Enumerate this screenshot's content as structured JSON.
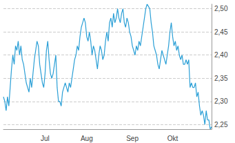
{
  "chart_data": {
    "type": "line",
    "categories": [
      null,
      null,
      null,
      null,
      null,
      null,
      null,
      null,
      null,
      null,
      null,
      null,
      null,
      null,
      null,
      null,
      null,
      null,
      null,
      null,
      null,
      null,
      null,
      null,
      null,
      null,
      null,
      null,
      null,
      null,
      null,
      "Jul",
      null,
      null,
      null,
      null,
      null,
      null,
      null,
      null,
      null,
      null,
      null,
      null,
      null,
      null,
      null,
      null,
      null,
      null,
      null,
      null,
      null,
      null,
      null,
      null,
      null,
      null,
      null,
      null,
      null,
      null,
      "Aug",
      null,
      null,
      null,
      null,
      null,
      null,
      null,
      null,
      null,
      null,
      null,
      null,
      null,
      null,
      null,
      null,
      null,
      null,
      null,
      null,
      null,
      null,
      null,
      null,
      null,
      null,
      null,
      null,
      null,
      null,
      null,
      null,
      null,
      "Sep",
      null,
      null,
      null,
      null,
      null,
      null,
      null,
      null,
      null,
      null,
      null,
      null,
      null,
      null,
      null,
      null,
      null,
      null,
      null,
      null,
      null,
      null,
      null,
      null,
      null,
      null,
      null,
      null,
      null,
      "Okt",
      null,
      null,
      null,
      null,
      null,
      null,
      null,
      null,
      null,
      null,
      null,
      null,
      null,
      null,
      null,
      null,
      null,
      null,
      null,
      null,
      null,
      null,
      null,
      null,
      null,
      null,
      null,
      null,
      null
    ],
    "values": [
      2.31,
      2.3,
      2.28,
      2.31,
      2.29,
      2.33,
      2.37,
      2.4,
      2.38,
      2.42,
      2.41,
      2.43,
      2.4,
      2.42,
      2.39,
      2.38,
      2.36,
      2.34,
      2.33,
      2.32,
      2.35,
      2.33,
      2.36,
      2.39,
      2.41,
      2.43,
      2.42,
      2.38,
      2.36,
      2.34,
      2.33,
      2.36,
      2.41,
      2.43,
      2.39,
      2.36,
      2.35,
      2.36,
      2.38,
      2.4,
      2.33,
      2.3,
      2.3,
      2.29,
      2.32,
      2.33,
      2.34,
      2.33,
      2.32,
      2.34,
      2.33,
      2.35,
      2.37,
      2.39,
      2.4,
      2.42,
      2.41,
      2.44,
      2.46,
      2.47,
      2.48,
      2.47,
      2.44,
      2.43,
      2.45,
      2.43,
      2.4,
      2.42,
      2.41,
      2.39,
      2.37,
      2.4,
      2.42,
      2.41,
      2.39,
      2.4,
      2.43,
      2.45,
      2.43,
      2.47,
      2.48,
      2.46,
      2.49,
      2.47,
      2.48,
      2.5,
      2.48,
      2.47,
      2.49,
      2.5,
      2.47,
      2.46,
      2.48,
      2.47,
      2.45,
      2.44,
      2.42,
      2.41,
      2.4,
      2.42,
      2.41,
      2.43,
      2.42,
      2.44,
      2.46,
      2.48,
      2.5,
      2.51,
      2.505,
      2.5,
      2.47,
      2.45,
      2.42,
      2.41,
      2.4,
      2.38,
      2.37,
      2.39,
      2.41,
      2.4,
      2.39,
      2.38,
      2.4,
      2.42,
      2.45,
      2.47,
      2.44,
      2.42,
      2.43,
      2.41,
      2.42,
      2.4,
      2.39,
      2.4,
      2.38,
      2.38,
      2.39,
      2.38,
      2.39,
      2.33,
      2.34,
      2.33,
      2.33,
      2.34,
      2.31,
      2.32,
      2.29,
      2.27,
      2.28,
      2.27,
      2.25,
      2.28,
      2.26,
      2.26,
      2.24,
      2.245
    ],
    "color": "#2a9fd6",
    "ylim": [
      2.24,
      2.51
    ],
    "yticks": [
      {
        "value": 2.25,
        "label": "2,25"
      },
      {
        "value": 2.3,
        "label": "2,30"
      },
      {
        "value": 2.35,
        "label": "2,35"
      },
      {
        "value": 2.4,
        "label": "2,40"
      },
      {
        "value": 2.45,
        "label": "2,45"
      },
      {
        "value": 2.5,
        "label": "2,50"
      }
    ],
    "grid": true
  }
}
